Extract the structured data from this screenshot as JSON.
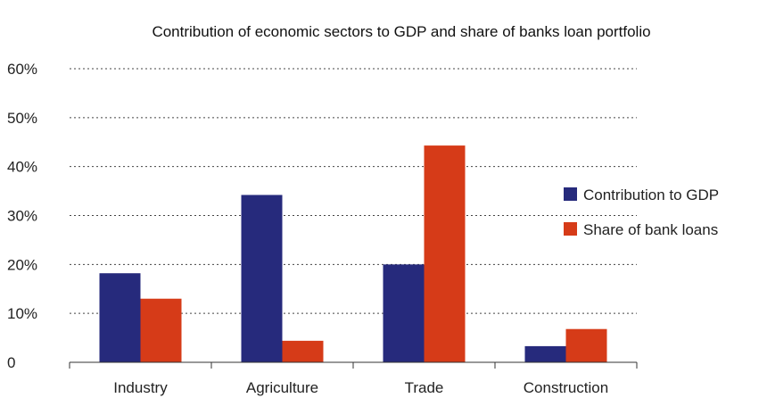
{
  "chart_data": {
    "type": "bar",
    "title": "Contribution of economic sectors to GDP and share of banks loan portfolio",
    "categories": [
      "Industry",
      "Agriculture",
      "Trade",
      "Construction"
    ],
    "series": [
      {
        "name": "Contribution to GDP",
        "color": "#262a7c",
        "values": [
          18.2,
          34.2,
          20.0,
          3.3
        ]
      },
      {
        "name": "Share of bank loans",
        "color": "#d63b18",
        "values": [
          13.0,
          4.4,
          44.3,
          6.8
        ]
      }
    ],
    "ylim": [
      0,
      60
    ],
    "yticks": [
      0,
      10,
      20,
      30,
      40,
      50,
      60
    ],
    "ytick_labels": [
      "0",
      "10%",
      "20%",
      "30%",
      "40%",
      "50%",
      "60%"
    ],
    "grid": true,
    "legend_position": "right"
  }
}
